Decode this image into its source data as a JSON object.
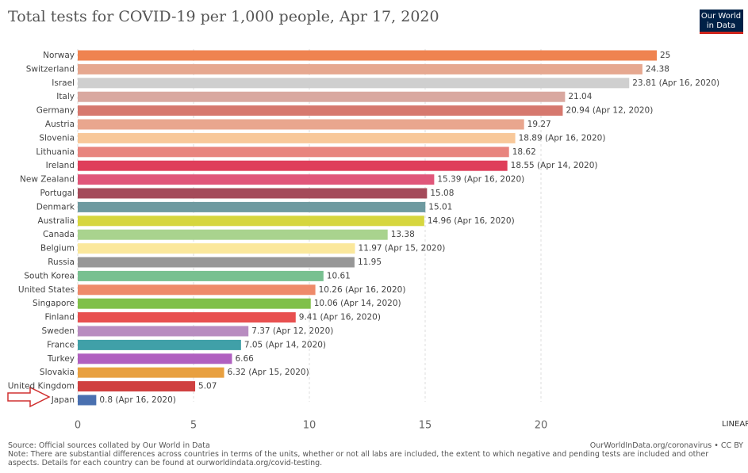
{
  "chart_data": {
    "type": "hbar",
    "title": "Total tests for COVID-19 per 1,000 people, Apr 17, 2020",
    "categories": [
      "Norway",
      "Switzerland",
      "Israel",
      "Italy",
      "Germany",
      "Austria",
      "Slovenia",
      "Lithuania",
      "Ireland",
      "New Zealand",
      "Portugal",
      "Denmark",
      "Australia",
      "Canada",
      "Belgium",
      "Russia",
      "South Korea",
      "United States",
      "Singapore",
      "Finland",
      "Sweden",
      "France",
      "Turkey",
      "Slovakia",
      "United Kingdom",
      "Japan"
    ],
    "values": [
      25,
      24.38,
      23.81,
      21.04,
      20.94,
      19.27,
      18.89,
      18.62,
      18.55,
      15.39,
      15.08,
      15.01,
      14.96,
      13.38,
      11.97,
      11.95,
      10.61,
      10.26,
      10.06,
      9.41,
      7.37,
      7.05,
      6.66,
      6.32,
      5.07,
      0.8
    ],
    "value_labels": [
      "25",
      "24.38",
      "23.81 (Apr 16, 2020)",
      "21.04",
      "20.94 (Apr 12, 2020)",
      "19.27",
      "18.89 (Apr 16, 2020)",
      "18.62",
      "18.55 (Apr 14, 2020)",
      "15.39 (Apr 16, 2020)",
      "15.08",
      "15.01",
      "14.96 (Apr 16, 2020)",
      "13.38",
      "11.97 (Apr 15, 2020)",
      "11.95",
      "10.61",
      "10.26 (Apr 16, 2020)",
      "10.06 (Apr 14, 2020)",
      "9.41 (Apr 16, 2020)",
      "7.37 (Apr 12, 2020)",
      "7.05 (Apr 14, 2020)",
      "6.66",
      "6.32 (Apr 15, 2020)",
      "5.07",
      "0.8 (Apr 16, 2020)"
    ],
    "colors": [
      "#ef8350",
      "#e6a890",
      "#cfcfcf",
      "#d9a8a0",
      "#d6786e",
      "#e9a68e",
      "#f8c89a",
      "#e8847e",
      "#df3e5a",
      "#e0567a",
      "#a44a5a",
      "#6e9aa0",
      "#d6d63e",
      "#a9d38e",
      "#fbe89c",
      "#979797",
      "#78c090",
      "#ee8a6a",
      "#80c04a",
      "#e85050",
      "#b88cc0",
      "#40a0a8",
      "#b060c0",
      "#e8a040",
      "#d04040",
      "#4a70b0"
    ],
    "xlim": [
      0,
      25
    ],
    "xticks": [
      0,
      5,
      10,
      15,
      20
    ],
    "grid": true,
    "scale_button": "LINEAR",
    "logo": [
      "Our World",
      "in Data"
    ],
    "source": "Source: Official sources collated by Our World in Data",
    "url": "OurWorldInData.org/coronavirus • CC BY",
    "note": "Note: There are substantial differences across countries in terms of the units, whether or not all labs are included, the extent to which negative and pending tests are included and other aspects. Details for each country can be found at ourworldindata.org/covid-testing."
  }
}
